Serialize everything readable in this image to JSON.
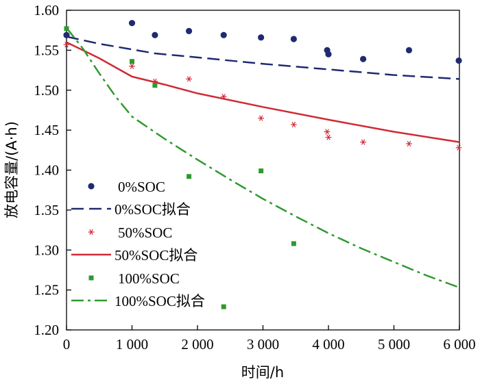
{
  "chart_data": {
    "type": "scatter",
    "xlabel": "时间/h",
    "ylabel": "放电容量/(A·h)",
    "xlim": [
      0,
      6000
    ],
    "ylim": [
      1.2,
      1.6
    ],
    "x_ticks": [
      0,
      1000,
      2000,
      3000,
      4000,
      5000,
      6000
    ],
    "x_tick_labels": [
      "0",
      "1 000",
      "2 000",
      "3 000",
      "4 000",
      "5 000",
      "6 000"
    ],
    "y_ticks": [
      1.2,
      1.25,
      1.3,
      1.35,
      1.4,
      1.45,
      1.5,
      1.55,
      1.6
    ],
    "y_tick_labels": [
      "1.20",
      "1.25",
      "1.30",
      "1.35",
      "1.40",
      "1.45",
      "1.50",
      "1.55",
      "1.60"
    ],
    "grid": false,
    "legend_position": "bottom-left",
    "series": [
      {
        "name": "0%SOC",
        "kind": "marker",
        "marker": "circle",
        "color": "#1f2a70",
        "points": [
          [
            0,
            1.569
          ],
          [
            1000,
            1.584
          ],
          [
            1350,
            1.569
          ],
          [
            1870,
            1.574
          ],
          [
            2400,
            1.569
          ],
          [
            2970,
            1.566
          ],
          [
            3470,
            1.564
          ],
          [
            3980,
            1.55
          ],
          [
            4000,
            1.545
          ],
          [
            4530,
            1.539
          ],
          [
            5230,
            1.55
          ],
          [
            5990,
            1.537
          ]
        ]
      },
      {
        "name": "0%SOC拟合",
        "kind": "line",
        "dash": "dashed",
        "color": "#1f2a70",
        "points": [
          [
            0,
            1.567
          ],
          [
            500,
            1.558
          ],
          [
            1000,
            1.551
          ],
          [
            1350,
            1.546
          ],
          [
            2000,
            1.541
          ],
          [
            3000,
            1.533
          ],
          [
            4000,
            1.526
          ],
          [
            5000,
            1.519
          ],
          [
            6000,
            1.514
          ]
        ]
      },
      {
        "name": "50%SOC",
        "kind": "marker",
        "marker": "asterisk",
        "color": "#d02a35",
        "points": [
          [
            0,
            1.557
          ],
          [
            1000,
            1.53
          ],
          [
            1350,
            1.511
          ],
          [
            1870,
            1.514
          ],
          [
            2400,
            1.492
          ],
          [
            2970,
            1.465
          ],
          [
            3470,
            1.457
          ],
          [
            3980,
            1.448
          ],
          [
            4000,
            1.441
          ],
          [
            4530,
            1.435
          ],
          [
            5230,
            1.433
          ],
          [
            5990,
            1.428
          ]
        ]
      },
      {
        "name": "50%SOC拟合",
        "kind": "line",
        "dash": "solid",
        "color": "#d02a35",
        "points": [
          [
            0,
            1.56
          ],
          [
            500,
            1.54
          ],
          [
            1000,
            1.517
          ],
          [
            1500,
            1.507
          ],
          [
            2000,
            1.496
          ],
          [
            3000,
            1.479
          ],
          [
            4000,
            1.463
          ],
          [
            5000,
            1.448
          ],
          [
            6000,
            1.435
          ]
        ]
      },
      {
        "name": "100%SOC",
        "kind": "marker",
        "marker": "square",
        "color": "#2e9a2e",
        "points": [
          [
            0,
            1.577
          ],
          [
            1000,
            1.536
          ],
          [
            1350,
            1.506
          ],
          [
            1870,
            1.392
          ],
          [
            2400,
            1.229
          ],
          [
            2970,
            1.399
          ],
          [
            3470,
            1.308
          ]
        ]
      },
      {
        "name": "100%SOC拟合",
        "kind": "line",
        "dash": "dashdot",
        "color": "#2e9a2e",
        "points": [
          [
            0,
            1.578
          ],
          [
            250,
            1.552
          ],
          [
            500,
            1.521
          ],
          [
            750,
            1.492
          ],
          [
            1000,
            1.467
          ],
          [
            1500,
            1.439
          ],
          [
            2000,
            1.413
          ],
          [
            2500,
            1.388
          ],
          [
            3000,
            1.364
          ],
          [
            3500,
            1.342
          ],
          [
            4000,
            1.321
          ],
          [
            4500,
            1.302
          ],
          [
            5000,
            1.285
          ],
          [
            5500,
            1.268
          ],
          [
            6000,
            1.253
          ]
        ]
      }
    ]
  }
}
